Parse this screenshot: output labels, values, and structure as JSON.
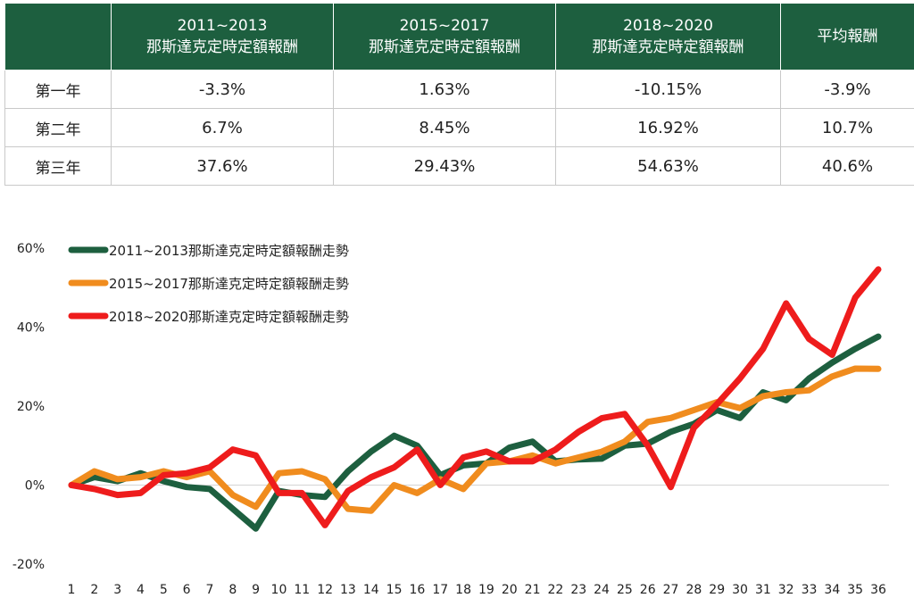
{
  "table": {
    "headers": [
      {
        "line1": "",
        "line2": ""
      },
      {
        "line1": "2011~2013",
        "line2": "那斯達克定時定額報酬"
      },
      {
        "line1": "2015~2017",
        "line2": "那斯達克定時定額報酬"
      },
      {
        "line1": "2018~2020",
        "line2": "那斯達克定時定額報酬"
      },
      {
        "line1": "平均報酬",
        "line2": ""
      }
    ],
    "rows": [
      {
        "label": "第一年",
        "values": [
          "-3.3%",
          "1.63%",
          "-10.15%",
          "-3.9%"
        ]
      },
      {
        "label": "第二年",
        "values": [
          "6.7%",
          "8.45%",
          "16.92%",
          "10.7%"
        ]
      },
      {
        "label": "第三年",
        "values": [
          "37.6%",
          "29.43%",
          "54.63%",
          "40.6%"
        ]
      }
    ]
  },
  "chart_data": {
    "type": "line",
    "x": [
      1,
      2,
      3,
      4,
      5,
      6,
      7,
      8,
      9,
      10,
      11,
      12,
      13,
      14,
      15,
      16,
      17,
      18,
      19,
      20,
      21,
      22,
      23,
      24,
      25,
      26,
      27,
      28,
      29,
      30,
      31,
      32,
      33,
      34,
      35,
      36
    ],
    "x_tick_labels": [
      "1",
      "2",
      "3",
      "4",
      "5",
      "6",
      "7",
      "8",
      "9",
      "10",
      "11",
      "12",
      "13",
      "14",
      "15",
      "16",
      "17",
      "18",
      "19",
      "20",
      "21",
      "22",
      "23",
      "24",
      "25",
      "26",
      "27",
      "28",
      "29",
      "30",
      "31",
      "32",
      "33",
      "34",
      "35",
      "36"
    ],
    "ylim": [
      -20,
      60
    ],
    "y_ticks": [
      -20,
      0,
      20,
      40,
      60
    ],
    "y_tick_labels": [
      "-20%",
      "0%",
      "20%",
      "40%",
      "60%"
    ],
    "legend_position": "top-left",
    "grid": false,
    "series": [
      {
        "name": "2011~2013那斯達克定時定額報酬走勢",
        "color": "#1d5f3f",
        "values": [
          0,
          2,
          1,
          3,
          1,
          -0.5,
          -1,
          -6,
          -11,
          -1.5,
          -2.5,
          -3,
          3.5,
          8.5,
          12.5,
          10,
          2.5,
          5,
          5.5,
          9.5,
          11,
          6,
          6.5,
          6.7,
          10,
          10.5,
          13.5,
          15.5,
          19,
          17,
          23.5,
          21.5,
          27,
          31,
          34.5,
          37.6
        ]
      },
      {
        "name": "2015~2017那斯達克定時定額報酬走勢",
        "color": "#f08c1e",
        "values": [
          0,
          3.5,
          1.5,
          2,
          3.5,
          2,
          3.5,
          -2.5,
          -5.5,
          3,
          3.5,
          1.5,
          -6,
          -6.5,
          0,
          -2,
          1.5,
          -1,
          5.5,
          6,
          7.5,
          5.5,
          7,
          8.45,
          11,
          16,
          17,
          19,
          21,
          19.5,
          22.5,
          23.5,
          24,
          27.5,
          29.5,
          29.43
        ]
      },
      {
        "name": "2018~2020那斯達克定時定額報酬走勢",
        "color": "#ee1c1c",
        "values": [
          0,
          -1,
          -2.5,
          -2,
          2.5,
          3,
          4.5,
          9,
          7.5,
          -2,
          -2,
          -10.15,
          -1.5,
          2,
          4.5,
          9,
          0,
          7,
          8.5,
          6,
          6,
          9,
          13.5,
          16.92,
          18,
          10,
          -0.5,
          14.5,
          20.5,
          27,
          34.5,
          46,
          37,
          33,
          47.5,
          54.63
        ]
      }
    ]
  }
}
